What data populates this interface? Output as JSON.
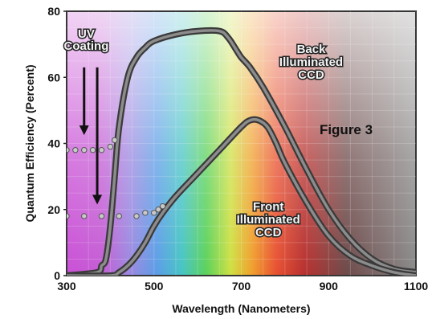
{
  "chart_data": {
    "type": "line",
    "title": "",
    "xlabel": "Wavelength (Nanometers)",
    "ylabel": "Quantum Efficiency (Percent)",
    "xlim": [
      300,
      1100
    ],
    "ylim": [
      0,
      80
    ],
    "x_ticks": [
      "300",
      "500",
      "700",
      "900",
      "1100"
    ],
    "x_tick_values": [
      300,
      500,
      700,
      900,
      1100
    ],
    "y_ticks": [
      "0",
      "20",
      "40",
      "60",
      "80"
    ],
    "y_tick_values": [
      0,
      20,
      40,
      60,
      80
    ],
    "grid": true,
    "series": [
      {
        "name": "Back Illuminated CCD",
        "x": [
          300,
          370,
          380,
          390,
          400,
          410,
          420,
          440,
          460,
          480,
          500,
          550,
          600,
          650,
          670,
          690,
          700,
          720,
          750,
          800,
          850,
          900,
          950,
          1000,
          1050,
          1100
        ],
        "y": [
          0,
          1,
          3,
          5,
          15,
          30,
          45,
          60,
          66,
          69,
          71,
          73,
          74,
          74,
          72,
          68,
          66,
          63,
          57,
          45,
          32,
          20,
          11,
          5,
          2,
          1
        ]
      },
      {
        "name": "Front Illuminated CCD",
        "x": [
          300,
          400,
          420,
          440,
          460,
          480,
          500,
          520,
          550,
          600,
          650,
          700,
          720,
          740,
          760,
          780,
          800,
          850,
          900,
          950,
          1000,
          1050,
          1100
        ],
        "y": [
          0,
          0,
          1,
          3,
          6,
          10,
          15,
          19,
          24,
          31,
          38,
          45,
          47,
          47,
          45,
          40,
          34,
          22,
          12,
          6,
          3,
          1,
          0
        ]
      },
      {
        "name": "UV Coating (back illuminated)",
        "style": "dotted",
        "x": [
          300,
          320,
          340,
          360,
          380,
          400,
          410
        ],
        "y": [
          38,
          38,
          38,
          38,
          38,
          39,
          41
        ]
      },
      {
        "name": "UV Coating (front illuminated)",
        "style": "dotted",
        "x": [
          300,
          340,
          380,
          420,
          460,
          480,
          500,
          510,
          520
        ],
        "y": [
          18,
          18,
          18,
          18,
          18,
          19,
          19,
          20,
          21
        ]
      }
    ],
    "annotations": {
      "uv_coating": [
        "UV",
        "Coating"
      ],
      "back": [
        "Back",
        "Illuminated",
        "CCD"
      ],
      "front": [
        "Front",
        "Illuminated",
        "CCD"
      ],
      "figure": "Figure 3"
    },
    "arrows": [
      {
        "x": 340,
        "y_from": 63,
        "y_to": 43
      },
      {
        "x": 370,
        "y_from": 63,
        "y_to": 22
      }
    ],
    "colors": {
      "curve_outer": "#3a3a3a",
      "curve_inner": "#8c8c8c",
      "background": "#7a7a7a",
      "uv_region": "#d06ad8",
      "ir_region": "#9b9b9b"
    }
  }
}
